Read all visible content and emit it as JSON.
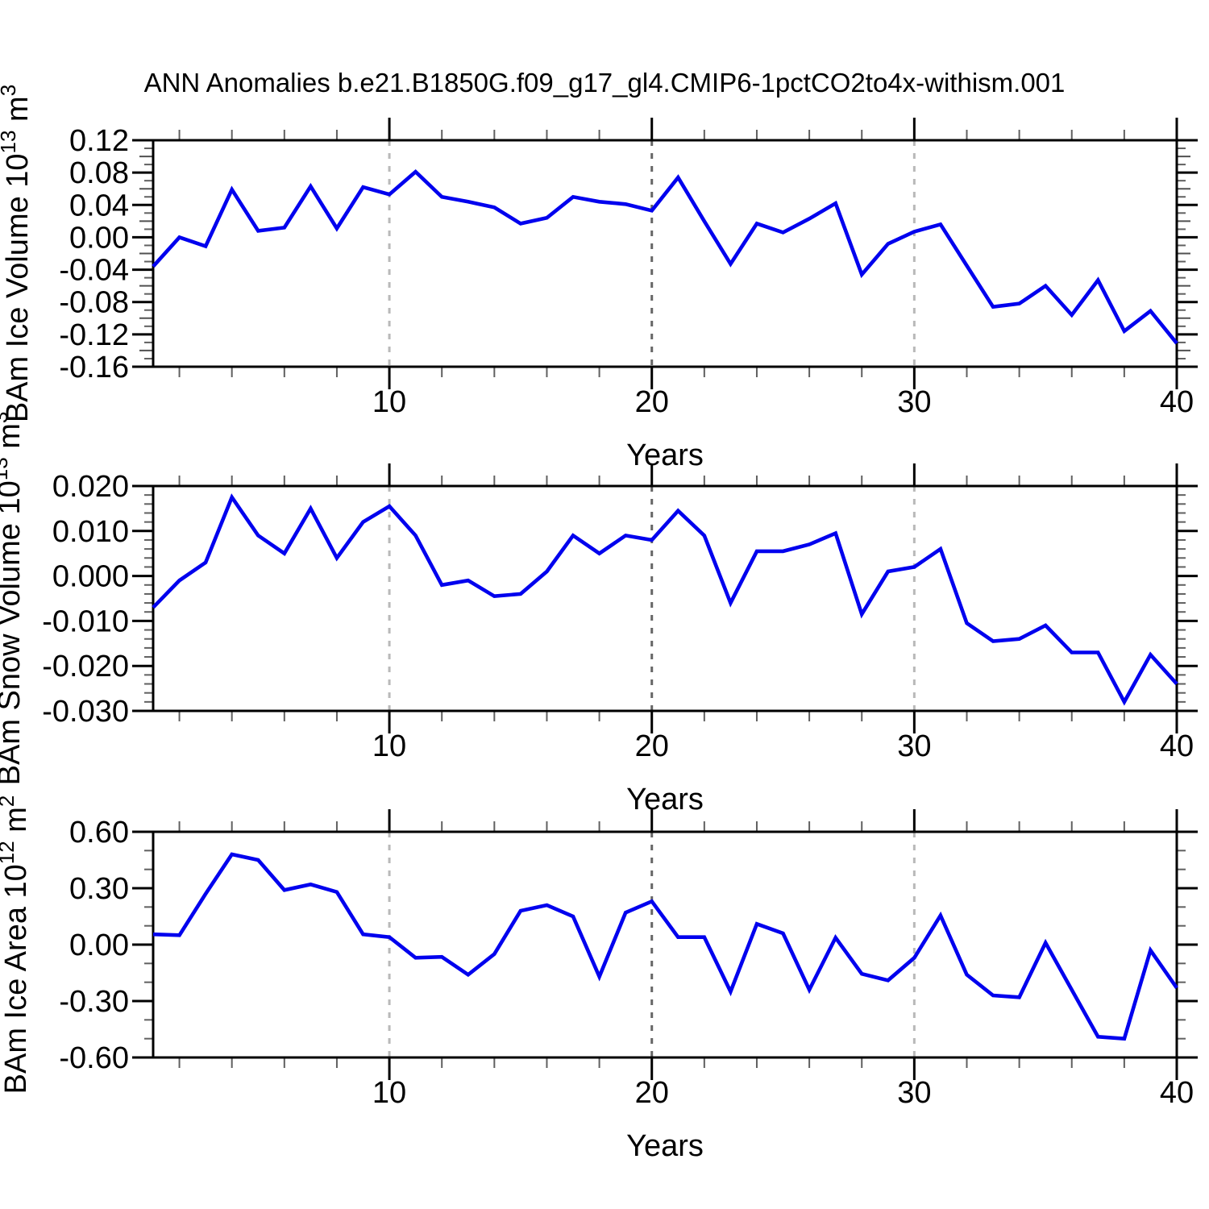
{
  "title": "ANN Anomalies b.e21.B1850G.f09_g17_gl4.CMIP6-1pctCO2to4x-withism.001",
  "xlabel": "Years",
  "years": [
    1,
    2,
    3,
    4,
    5,
    6,
    7,
    8,
    9,
    10,
    11,
    12,
    13,
    14,
    15,
    16,
    17,
    18,
    19,
    20,
    21,
    22,
    23,
    24,
    25,
    26,
    27,
    28,
    29,
    30,
    31,
    32,
    33,
    34,
    35,
    36,
    37,
    38,
    39,
    40
  ],
  "style": {
    "line_color": "#0000ee",
    "axis_color": "#000000",
    "grid_light_color": "#b9b9b9",
    "grid_dark_color": "#666666",
    "tick_minor_color": "#606060",
    "tick_mid_color": "#505050"
  },
  "chart_data": [
    {
      "id": "ice-volume",
      "type": "line",
      "ylabel_text": "BAm Ice Volume 10^13 m^3",
      "ylabel_segments": [
        {
          "t": "BAm Ice Volume 10"
        },
        {
          "t": "13",
          "sup": true
        },
        {
          "t": " m"
        },
        {
          "t": "3",
          "sup": true
        }
      ],
      "xlabel": "Years",
      "x_range": [
        1,
        40
      ],
      "y_range": [
        -0.16,
        0.12
      ],
      "y_major_ticks": [
        0.12,
        0.08,
        0.04,
        0.0,
        -0.04,
        -0.08,
        -0.12,
        -0.16
      ],
      "y_tick_labels": [
        "0.12",
        "0.08",
        "0.04",
        "0.00",
        "-0.04",
        "-0.08",
        "-0.12",
        "-0.16"
      ],
      "y_minor_step": 0.01,
      "y_mid_step": 0.02,
      "x_major_ticks": [
        10,
        20,
        30,
        40
      ],
      "x_minor_step": 2,
      "grid_x": [
        {
          "year": 10,
          "shade": "light"
        },
        {
          "year": 20,
          "shade": "dark"
        },
        {
          "year": 30,
          "shade": "light"
        }
      ],
      "values": [
        -0.036,
        0.0,
        -0.011,
        0.059,
        0.008,
        0.012,
        0.063,
        0.011,
        0.062,
        0.053,
        0.081,
        0.05,
        0.044,
        0.037,
        0.017,
        0.024,
        0.05,
        0.044,
        0.041,
        0.033,
        0.074,
        0.02,
        -0.033,
        0.017,
        0.006,
        0.023,
        0.042,
        -0.046,
        -0.008,
        0.007,
        0.016,
        -0.035,
        -0.086,
        -0.082,
        -0.06,
        -0.096,
        -0.053,
        -0.116,
        -0.091,
        -0.131
      ]
    },
    {
      "id": "snow-volume",
      "type": "line",
      "ylabel_text": "BAm Snow Volume 10^13 m^3",
      "ylabel_segments": [
        {
          "t": "BAm Snow Volume 10"
        },
        {
          "t": "13",
          "sup": true
        },
        {
          "t": " m"
        },
        {
          "t": "3",
          "sup": true
        }
      ],
      "xlabel": "Years",
      "x_range": [
        1,
        40
      ],
      "y_range": [
        -0.03,
        0.02
      ],
      "y_major_ticks": [
        0.02,
        0.01,
        0.0,
        -0.01,
        -0.02,
        -0.03
      ],
      "y_tick_labels": [
        "0.020",
        "0.010",
        "0.000",
        "-0.010",
        "-0.020",
        "-0.030"
      ],
      "y_minor_step": 0.002,
      "y_mid_step": null,
      "x_major_ticks": [
        10,
        20,
        30,
        40
      ],
      "x_minor_step": 2,
      "grid_x": [
        {
          "year": 10,
          "shade": "light"
        },
        {
          "year": 20,
          "shade": "dark"
        },
        {
          "year": 30,
          "shade": "light"
        }
      ],
      "values": [
        -0.007,
        -0.001,
        0.003,
        0.0175,
        0.009,
        0.005,
        0.015,
        0.004,
        0.012,
        0.0155,
        0.009,
        -0.002,
        -0.001,
        -0.0045,
        -0.004,
        0.001,
        0.009,
        0.005,
        0.009,
        0.008,
        0.0145,
        0.009,
        -0.006,
        0.0055,
        0.0055,
        0.007,
        0.0095,
        -0.0085,
        0.001,
        0.002,
        0.006,
        -0.0105,
        -0.0145,
        -0.014,
        -0.011,
        -0.017,
        -0.017,
        -0.028,
        -0.0175,
        -0.024
      ]
    },
    {
      "id": "ice-area",
      "type": "line",
      "ylabel_text": "BAm Ice Area 10^12 m^2",
      "ylabel_segments": [
        {
          "t": "BAm Ice Area 10"
        },
        {
          "t": "12",
          "sup": true
        },
        {
          "t": " m"
        },
        {
          "t": "2",
          "sup": true
        }
      ],
      "xlabel": "Years",
      "x_range": [
        1,
        40
      ],
      "y_range": [
        -0.6,
        0.6
      ],
      "y_major_ticks": [
        0.6,
        0.3,
        0.0,
        -0.3,
        -0.6
      ],
      "y_tick_labels": [
        "0.60",
        "0.30",
        "0.00",
        "-0.30",
        "-0.60"
      ],
      "y_minor_step": 0.1,
      "y_mid_step": null,
      "x_major_ticks": [
        10,
        20,
        30,
        40
      ],
      "x_minor_step": 2,
      "grid_x": [
        {
          "year": 10,
          "shade": "light"
        },
        {
          "year": 20,
          "shade": "dark"
        },
        {
          "year": 30,
          "shade": "light"
        }
      ],
      "values": [
        0.055,
        0.05,
        0.27,
        0.48,
        0.45,
        0.29,
        0.32,
        0.28,
        0.055,
        0.04,
        -0.07,
        -0.065,
        -0.16,
        -0.05,
        0.18,
        0.21,
        0.15,
        -0.17,
        0.17,
        0.23,
        0.04,
        0.04,
        -0.25,
        0.11,
        0.06,
        -0.24,
        0.037,
        -0.155,
        -0.19,
        -0.07,
        0.155,
        -0.16,
        -0.27,
        -0.28,
        0.01,
        -0.24,
        -0.49,
        -0.5,
        -0.03,
        -0.23
      ]
    }
  ]
}
